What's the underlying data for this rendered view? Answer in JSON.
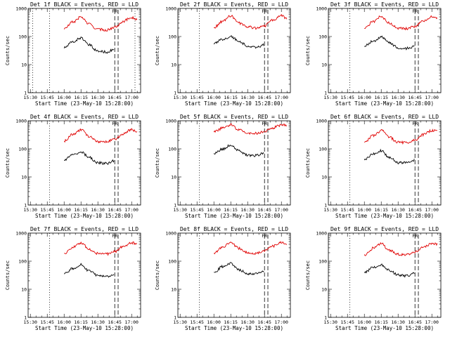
{
  "page": {
    "background": "#ffffff"
  },
  "colors": {
    "events": "#000000",
    "lld": "#e00000",
    "axes": "#000000"
  },
  "panels": [
    {
      "title": "Det 1f BLACK = Events, RED = LLD",
      "ylabel": "Counts/sec",
      "xlabel": "Start Time (23-May-10 15:28:00)"
    },
    {
      "title": "Det 2f BLACK = Events, RED = LLD",
      "ylabel": "Counts/sec",
      "xlabel": "Start Time (23-May-10 15:28:00)"
    },
    {
      "title": "Det 3f BLACK = Events, RED = LLD",
      "ylabel": "Counts/sec",
      "xlabel": "Start Time (23-May-10 15:28:00)"
    },
    {
      "title": "Det 4f BLACK = Events, RED = LLD",
      "ylabel": "Counts/sec",
      "xlabel": "Start Time (23-May-10 15:28:00)"
    },
    {
      "title": "Det 5f BLACK = Events, RED = LLD",
      "ylabel": "Counts/sec",
      "xlabel": "Start Time (23-May-10 15:28:00)"
    },
    {
      "title": "Det 6f BLACK = Events, RED = LLD",
      "ylabel": "Counts/sec",
      "xlabel": "Start Time (23-May-10 15:28:00)"
    },
    {
      "title": "Det 7f BLACK = Events, RED = LLD",
      "ylabel": "Counts/sec",
      "xlabel": "Start Time (23-May-10 15:28:00)"
    },
    {
      "title": "Det 8f BLACK = Events, RED = LLD",
      "ylabel": "Counts/sec",
      "xlabel": "Start Time (23-May-10 15:28:00)"
    },
    {
      "title": "Det 9f BLACK = Events, RED = LLD",
      "ylabel": "Counts/sec",
      "xlabel": "Start Time (23-May-10 15:28:00)"
    }
  ],
  "chart_data": [
    {
      "type": "line",
      "title": "Det 1f BLACK = Events, RED = LLD",
      "xlabel": "Start Time (23-May-10 15:28:00)",
      "ylabel": "Counts/sec",
      "yscale": "log",
      "ylim": [
        1,
        1000
      ],
      "xlim": [
        "15:28",
        "17:08"
      ],
      "xticks": [
        "15:30",
        "15:45",
        "16:00",
        "16:15",
        "16:30",
        "16:45",
        "17:00"
      ],
      "yticks": [
        "1",
        "10",
        "100",
        "1000"
      ],
      "markers": {
        "dotted": [
          "15:32",
          "15:47",
          "17:03"
        ],
        "dashed": [
          "16:45",
          "16:48"
        ],
        "marker_labels": [
          "F",
          "R"
        ]
      },
      "series": [
        {
          "name": "Events",
          "color": "black",
          "x": [
            "16:00",
            "16:08",
            "16:15",
            "16:22",
            "16:30",
            "16:38",
            "16:45"
          ],
          "y": [
            40,
            65,
            90,
            50,
            30,
            28,
            35
          ]
        },
        {
          "name": "LLD",
          "color": "red",
          "x": [
            "16:00",
            "16:08",
            "16:15",
            "16:22",
            "16:30",
            "16:38",
            "16:45",
            "16:52",
            "17:00",
            "17:05"
          ],
          "y": [
            190,
            330,
            500,
            280,
            180,
            170,
            215,
            340,
            480,
            390
          ]
        }
      ]
    },
    {
      "type": "line",
      "title": "Det 2f BLACK = Events, RED = LLD",
      "xlabel": "Start Time (23-May-10 15:28:00)",
      "ylabel": "Counts/sec",
      "yscale": "log",
      "ylim": [
        1,
        1000
      ],
      "xlim": [
        "15:28",
        "17:08"
      ],
      "xticks": [
        "15:30",
        "15:45",
        "16:00",
        "16:15",
        "16:30",
        "16:45",
        "17:00"
      ],
      "yticks": [
        "1",
        "10",
        "100",
        "1000"
      ],
      "markers": {
        "dotted": [
          "15:47"
        ],
        "dashed": [
          "16:45",
          "16:48"
        ],
        "marker_labels": [
          "F",
          "R"
        ]
      },
      "series": [
        {
          "name": "Events",
          "color": "black",
          "x": [
            "16:00",
            "16:08",
            "16:15",
            "16:22",
            "16:30",
            "16:38",
            "16:45"
          ],
          "y": [
            55,
            80,
            100,
            70,
            45,
            42,
            50
          ]
        },
        {
          "name": "LLD",
          "color": "red",
          "x": [
            "16:00",
            "16:08",
            "16:15",
            "16:22",
            "16:30",
            "16:38",
            "16:45",
            "16:52",
            "17:00",
            "17:05"
          ],
          "y": [
            210,
            350,
            540,
            300,
            220,
            200,
            240,
            380,
            560,
            440
          ]
        }
      ]
    },
    {
      "type": "line",
      "title": "Det 3f BLACK = Events, RED = LLD",
      "xlabel": "Start Time (23-May-10 15:28:00)",
      "ylabel": "Counts/sec",
      "yscale": "log",
      "ylim": [
        1,
        1000
      ],
      "xlim": [
        "15:28",
        "17:08"
      ],
      "xticks": [
        "15:30",
        "15:45",
        "16:00",
        "16:15",
        "16:30",
        "16:45",
        "17:00"
      ],
      "yticks": [
        "1",
        "10",
        "100",
        "1000"
      ],
      "markers": {
        "dotted": [
          "15:47"
        ],
        "dashed": [
          "16:45",
          "16:48"
        ],
        "marker_labels": [
          "F",
          "R"
        ]
      },
      "series": [
        {
          "name": "Events",
          "color": "black",
          "x": [
            "16:00",
            "16:08",
            "16:15",
            "16:22",
            "16:30",
            "16:38",
            "16:45"
          ],
          "y": [
            45,
            70,
            95,
            60,
            40,
            38,
            45
          ]
        },
        {
          "name": "LLD",
          "color": "red",
          "x": [
            "16:00",
            "16:08",
            "16:15",
            "16:22",
            "16:30",
            "16:38",
            "16:45",
            "16:52",
            "17:00",
            "17:05"
          ],
          "y": [
            200,
            340,
            520,
            300,
            200,
            190,
            230,
            350,
            500,
            430
          ]
        }
      ]
    },
    {
      "type": "line",
      "title": "Det 4f BLACK = Events, RED = LLD",
      "xlabel": "Start Time (23-May-10 15:28:00)",
      "ylabel": "Counts/sec",
      "yscale": "log",
      "ylim": [
        1,
        1000
      ],
      "xlim": [
        "15:28",
        "17:08"
      ],
      "xticks": [
        "15:30",
        "15:45",
        "16:00",
        "16:15",
        "16:30",
        "16:45",
        "17:00"
      ],
      "yticks": [
        "1",
        "10",
        "100",
        "1000"
      ],
      "markers": {
        "dotted": [
          "15:47"
        ],
        "dashed": [
          "16:45",
          "16:48"
        ],
        "marker_labels": [
          "F",
          "R"
        ]
      },
      "series": [
        {
          "name": "Events",
          "color": "black",
          "x": [
            "16:00",
            "16:08",
            "16:15",
            "16:22",
            "16:30",
            "16:38",
            "16:45"
          ],
          "y": [
            40,
            60,
            80,
            50,
            32,
            30,
            38
          ]
        },
        {
          "name": "LLD",
          "color": "red",
          "x": [
            "16:00",
            "16:08",
            "16:15",
            "16:22",
            "16:30",
            "16:38",
            "16:45",
            "16:52",
            "17:00",
            "17:05"
          ],
          "y": [
            190,
            330,
            480,
            280,
            180,
            175,
            220,
            340,
            480,
            410
          ]
        }
      ]
    },
    {
      "type": "line",
      "title": "Det 5f BLACK = Events, RED = LLD",
      "xlabel": "Start Time (23-May-10 15:28:00)",
      "ylabel": "Counts/sec",
      "yscale": "log",
      "ylim": [
        1,
        1000
      ],
      "xlim": [
        "15:28",
        "17:08"
      ],
      "xticks": [
        "15:30",
        "15:45",
        "16:00",
        "16:15",
        "16:30",
        "16:45",
        "17:00"
      ],
      "yticks": [
        "1",
        "10",
        "100",
        "1000"
      ],
      "markers": {
        "dotted": [
          "15:47"
        ],
        "dashed": [
          "16:45",
          "16:48"
        ],
        "marker_labels": [
          "F",
          "R"
        ]
      },
      "series": [
        {
          "name": "Events",
          "color": "black",
          "x": [
            "16:00",
            "16:08",
            "16:15",
            "16:22",
            "16:30",
            "16:38",
            "16:45"
          ],
          "y": [
            70,
            100,
            135,
            90,
            58,
            58,
            72
          ]
        },
        {
          "name": "LLD",
          "color": "red",
          "x": [
            "16:00",
            "16:08",
            "16:15",
            "16:22",
            "16:30",
            "16:38",
            "16:45",
            "16:52",
            "17:00",
            "17:05"
          ],
          "y": [
            400,
            550,
            720,
            480,
            370,
            360,
            420,
            560,
            700,
            720
          ]
        }
      ]
    },
    {
      "type": "line",
      "title": "Det 6f BLACK = Events, RED = LLD",
      "xlabel": "Start Time (23-May-10 15:28:00)",
      "ylabel": "Counts/sec",
      "yscale": "log",
      "ylim": [
        1,
        1000
      ],
      "xlim": [
        "15:28",
        "17:08"
      ],
      "xticks": [
        "15:30",
        "15:45",
        "16:00",
        "16:15",
        "16:30",
        "16:45",
        "17:00"
      ],
      "yticks": [
        "1",
        "10",
        "100",
        "1000"
      ],
      "markers": {
        "dotted": [
          "15:47"
        ],
        "dashed": [
          "16:45",
          "16:48"
        ],
        "marker_labels": [
          "F",
          "R"
        ]
      },
      "series": [
        {
          "name": "Events",
          "color": "black",
          "x": [
            "16:00",
            "16:08",
            "16:15",
            "16:22",
            "16:30",
            "16:38",
            "16:45"
          ],
          "y": [
            40,
            65,
            85,
            50,
            32,
            32,
            40
          ]
        },
        {
          "name": "LLD",
          "color": "red",
          "x": [
            "16:00",
            "16:08",
            "16:15",
            "16:22",
            "16:30",
            "16:38",
            "16:45",
            "16:52",
            "17:00",
            "17:05"
          ],
          "y": [
            170,
            300,
            450,
            260,
            170,
            165,
            210,
            320,
            450,
            420
          ]
        }
      ]
    },
    {
      "type": "line",
      "title": "Det 7f BLACK = Events, RED = LLD",
      "xlabel": "Start Time (23-May-10 15:28:00)",
      "ylabel": "Counts/sec",
      "yscale": "log",
      "ylim": [
        1,
        1000
      ],
      "xlim": [
        "15:28",
        "17:08"
      ],
      "xticks": [
        "15:30",
        "15:45",
        "16:00",
        "16:15",
        "16:30",
        "16:45",
        "17:00"
      ],
      "yticks": [
        "1",
        "10",
        "100",
        "1000"
      ],
      "markers": {
        "dotted": [
          "15:47"
        ],
        "dashed": [
          "16:45",
          "16:48"
        ],
        "marker_labels": [
          "F",
          "R"
        ]
      },
      "series": [
        {
          "name": "Events",
          "color": "black",
          "x": [
            "16:00",
            "16:08",
            "16:15",
            "16:22",
            "16:30",
            "16:38",
            "16:45"
          ],
          "y": [
            35,
            55,
            75,
            45,
            30,
            28,
            32
          ]
        },
        {
          "name": "LLD",
          "color": "red",
          "x": [
            "16:00",
            "16:08",
            "16:15",
            "16:22",
            "16:30",
            "16:38",
            "16:45",
            "16:52",
            "17:00",
            "17:05"
          ],
          "y": [
            190,
            320,
            460,
            270,
            190,
            180,
            220,
            330,
            450,
            420
          ]
        }
      ]
    },
    {
      "type": "line",
      "title": "Det 8f BLACK = Events, RED = LLD",
      "xlabel": "Start Time (23-May-10 15:28:00)",
      "ylabel": "Counts/sec",
      "yscale": "log",
      "ylim": [
        1,
        1000
      ],
      "xlim": [
        "15:28",
        "17:08"
      ],
      "xticks": [
        "15:30",
        "15:45",
        "16:00",
        "16:15",
        "16:30",
        "16:45",
        "17:00"
      ],
      "yticks": [
        "1",
        "10",
        "100",
        "1000"
      ],
      "markers": {
        "dotted": [
          "15:47"
        ],
        "dashed": [
          "16:45",
          "16:48"
        ],
        "marker_labels": [
          "F",
          "R"
        ]
      },
      "series": [
        {
          "name": "Events",
          "color": "black",
          "x": [
            "16:00",
            "16:08",
            "16:15",
            "16:22",
            "16:30",
            "16:38",
            "16:45"
          ],
          "y": [
            40,
            65,
            85,
            50,
            36,
            36,
            45
          ]
        },
        {
          "name": "LLD",
          "color": "red",
          "x": [
            "16:00",
            "16:08",
            "16:15",
            "16:22",
            "16:30",
            "16:38",
            "16:45",
            "16:52",
            "17:00",
            "17:05"
          ],
          "y": [
            190,
            330,
            480,
            290,
            200,
            190,
            230,
            340,
            470,
            410
          ]
        }
      ]
    },
    {
      "type": "line",
      "title": "Det 9f BLACK = Events, RED = LLD",
      "xlabel": "Start Time (23-May-10 15:28:00)",
      "ylabel": "Counts/sec",
      "yscale": "log",
      "ylim": [
        1,
        1000
      ],
      "xlim": [
        "15:28",
        "17:08"
      ],
      "xticks": [
        "15:30",
        "15:45",
        "16:00",
        "16:15",
        "16:30",
        "16:45",
        "17:00"
      ],
      "yticks": [
        "1",
        "10",
        "100",
        "1000"
      ],
      "markers": {
        "dotted": [
          "15:47"
        ],
        "dashed": [
          "16:45",
          "16:48"
        ],
        "marker_labels": [
          "F",
          "R"
        ]
      },
      "series": [
        {
          "name": "Events",
          "color": "black",
          "x": [
            "16:00",
            "16:08",
            "16:15",
            "16:22",
            "16:30",
            "16:38",
            "16:45"
          ],
          "y": [
            40,
            60,
            75,
            48,
            32,
            30,
            38
          ]
        },
        {
          "name": "LLD",
          "color": "red",
          "x": [
            "16:00",
            "16:08",
            "16:15",
            "16:22",
            "16:30",
            "16:38",
            "16:45",
            "16:52",
            "17:00",
            "17:05"
          ],
          "y": [
            170,
            290,
            430,
            250,
            175,
            170,
            210,
            320,
            430,
            400
          ]
        }
      ]
    }
  ]
}
